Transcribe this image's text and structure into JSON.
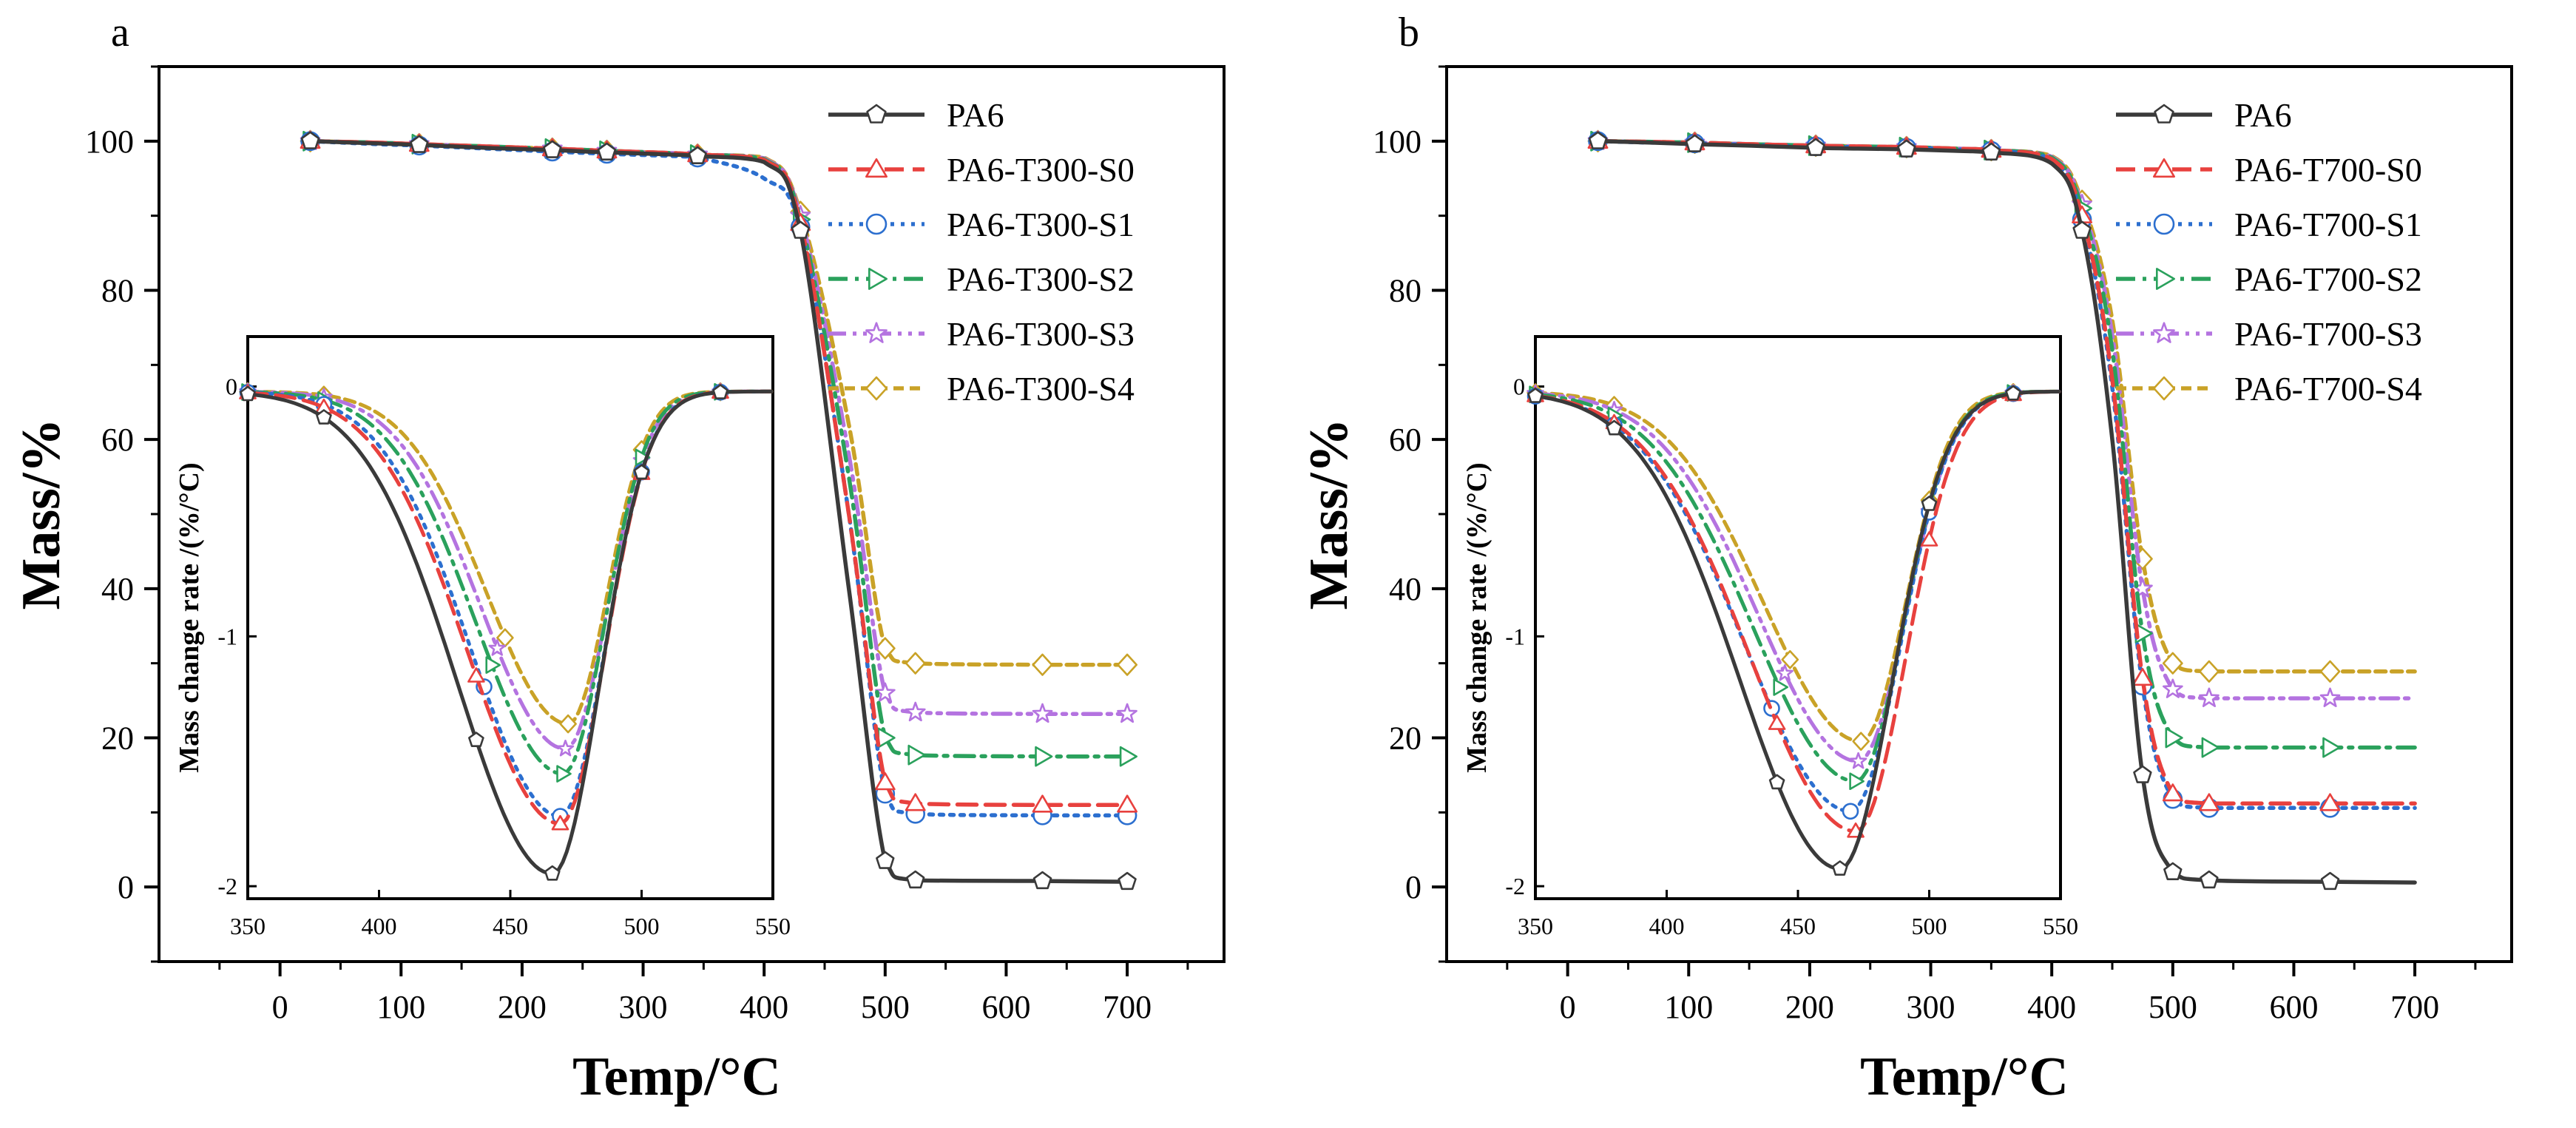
{
  "chart_data": [
    {
      "type": "line",
      "panel_label": "a",
      "xlabel": "Temp/°C",
      "ylabel": "Mass/%",
      "xlim": [
        -100,
        780
      ],
      "ylim": [
        -10,
        110
      ],
      "xticks": [
        0,
        100,
        200,
        300,
        400,
        500,
        600,
        700
      ],
      "yticks": [
        0,
        20,
        40,
        60,
        80,
        100
      ],
      "legend_position": "top-right",
      "colors": [
        "#3a3a3a",
        "#e8413e",
        "#2c6fcf",
        "#2aa15c",
        "#b473e0",
        "#c9a227"
      ],
      "series": [
        {
          "name": "PA6",
          "marker": "pentagon",
          "dash": "solid",
          "onset": 440,
          "plateau": 0.8,
          "x": [
            25,
            80,
            115,
            170,
            225,
            255,
            270,
            325,
            345,
            400,
            430,
            470,
            500,
            525,
            630,
            700
          ],
          "y": [
            100,
            99.7,
            99.5,
            99.1,
            98.8,
            98.6,
            98.5,
            98.2,
            98.0,
            97.2,
            88.0,
            40.0,
            3.5,
            0.9,
            0.8,
            0.7
          ]
        },
        {
          "name": "PA6-T300-S0",
          "marker": "triangle-up",
          "dash": "dashed",
          "onset": 450,
          "plateau": 11.0,
          "x": [
            25,
            80,
            115,
            170,
            225,
            255,
            270,
            325,
            345,
            400,
            430,
            470,
            500,
            525,
            630,
            700
          ],
          "y": [
            100,
            99.8,
            99.6,
            99.3,
            99.0,
            98.8,
            98.7,
            98.4,
            98.2,
            97.5,
            89.0,
            50.0,
            14.0,
            11.2,
            11.0,
            11.0
          ]
        },
        {
          "name": "PA6-T300-S1",
          "marker": "circle",
          "dash": "dotted",
          "onset": 452,
          "plateau": 9.6,
          "x": [
            25,
            80,
            115,
            170,
            225,
            255,
            270,
            325,
            345,
            400,
            430,
            470,
            500,
            525,
            630,
            700
          ],
          "y": [
            100,
            99.6,
            99.4,
            99.0,
            98.6,
            98.4,
            98.3,
            98.0,
            97.8,
            95.0,
            88.5,
            50.0,
            12.5,
            9.8,
            9.6,
            9.6
          ]
        },
        {
          "name": "PA6-T300-S2",
          "marker": "triangle-right",
          "dash": "dash-dot",
          "onset": 455,
          "plateau": 17.5,
          "x": [
            25,
            80,
            115,
            170,
            225,
            255,
            270,
            325,
            345,
            400,
            430,
            470,
            500,
            525,
            630,
            700
          ],
          "y": [
            100,
            99.8,
            99.6,
            99.3,
            99.0,
            98.8,
            98.7,
            98.4,
            98.2,
            97.6,
            89.5,
            55.0,
            20.0,
            17.7,
            17.5,
            17.5
          ]
        },
        {
          "name": "PA6-T300-S3",
          "marker": "star",
          "dash": "dash-dot-dot",
          "onset": 458,
          "plateau": 23.2,
          "x": [
            25,
            80,
            115,
            170,
            225,
            255,
            270,
            325,
            345,
            400,
            430,
            470,
            500,
            525,
            630,
            700
          ],
          "y": [
            100,
            99.8,
            99.6,
            99.3,
            99.0,
            98.8,
            98.7,
            98.4,
            98.2,
            97.7,
            90.0,
            58.0,
            26.0,
            23.4,
            23.2,
            23.2
          ]
        },
        {
          "name": "PA6-T300-S4",
          "marker": "diamond",
          "dash": "short-dash",
          "onset": 460,
          "plateau": 29.8,
          "x": [
            25,
            80,
            115,
            170,
            225,
            255,
            270,
            325,
            345,
            400,
            430,
            470,
            500,
            525,
            630,
            700
          ],
          "y": [
            100,
            99.8,
            99.6,
            99.3,
            99.0,
            98.8,
            98.7,
            98.4,
            98.2,
            97.8,
            90.5,
            62.0,
            32.0,
            30.0,
            29.8,
            29.8
          ]
        }
      ],
      "inset": {
        "xlabel": "",
        "ylabel": "Mass change rate /(%/°C)",
        "xlim": [
          350,
          550
        ],
        "ylim": [
          -2.05,
          0.2
        ],
        "xticks": [
          350,
          400,
          450,
          500,
          550
        ],
        "ytick_labels": [
          "0",
          "-1",
          "-2"
        ],
        "ytick_values": [
          0,
          -1,
          -2
        ],
        "series": [
          {
            "name": "PA6",
            "peak_x": 466,
            "peak_y": -1.95,
            "left_width": 36,
            "right_width": 18,
            "marker_x": [
              350,
              379,
              437,
              466,
              500,
              530
            ]
          },
          {
            "name": "PA6-T300-S0",
            "peak_x": 469,
            "peak_y": -1.75,
            "left_width": 35,
            "right_width": 17,
            "marker_x": [
              350,
              379,
              437,
              469,
              500,
              530
            ]
          },
          {
            "name": "PA6-T300-S1",
            "peak_x": 469,
            "peak_y": -1.72,
            "left_width": 34,
            "right_width": 17,
            "marker_x": [
              350,
              379,
              440,
              469,
              500,
              530
            ]
          },
          {
            "name": "PA6-T300-S2",
            "peak_x": 470,
            "peak_y": -1.55,
            "left_width": 33,
            "right_width": 16,
            "marker_x": [
              350,
              379,
              443,
              470,
              500,
              530
            ]
          },
          {
            "name": "PA6-T300-S3",
            "peak_x": 471,
            "peak_y": -1.45,
            "left_width": 32,
            "right_width": 16,
            "marker_x": [
              350,
              379,
              445,
              471,
              500,
              530
            ]
          },
          {
            "name": "PA6-T300-S4",
            "peak_x": 472,
            "peak_y": -1.35,
            "left_width": 31,
            "right_width": 15,
            "marker_x": [
              350,
              379,
              448,
              472,
              500,
              530
            ]
          }
        ]
      }
    },
    {
      "type": "line",
      "panel_label": "b",
      "xlabel": "Temp/°C",
      "ylabel": "Mass/%",
      "xlim": [
        -100,
        780
      ],
      "ylim": [
        -10,
        110
      ],
      "xticks": [
        0,
        100,
        200,
        300,
        400,
        500,
        600,
        700
      ],
      "yticks": [
        0,
        20,
        40,
        60,
        80,
        100
      ],
      "legend_position": "top-right",
      "colors": [
        "#3a3a3a",
        "#e8413e",
        "#2c6fcf",
        "#2aa15c",
        "#b473e0",
        "#c9a227"
      ],
      "series": [
        {
          "name": "PA6",
          "marker": "pentagon",
          "dash": "solid",
          "x": [
            25,
            70,
            105,
            150,
            205,
            240,
            280,
            320,
            350,
            400,
            425,
            450,
            475,
            500,
            530,
            630,
            700
          ],
          "y": [
            100,
            99.8,
            99.6,
            99.4,
            99.1,
            99.0,
            98.9,
            98.7,
            98.5,
            97.0,
            88.0,
            60.0,
            15.0,
            2.0,
            0.9,
            0.7,
            0.6
          ]
        },
        {
          "name": "PA6-T700-S0",
          "marker": "triangle-up",
          "dash": "dashed",
          "x": [
            25,
            70,
            105,
            150,
            205,
            240,
            280,
            320,
            350,
            400,
            425,
            450,
            475,
            500,
            530,
            630,
            700
          ],
          "y": [
            100,
            99.9,
            99.8,
            99.6,
            99.4,
            99.3,
            99.2,
            99.0,
            98.8,
            97.6,
            90.0,
            68.0,
            28.0,
            12.5,
            11.2,
            11.2,
            11.2
          ]
        },
        {
          "name": "PA6-T700-S1",
          "marker": "circle",
          "dash": "dotted",
          "x": [
            25,
            70,
            105,
            150,
            205,
            240,
            280,
            320,
            350,
            400,
            425,
            450,
            475,
            500,
            530,
            630,
            700
          ],
          "y": [
            100,
            99.8,
            99.7,
            99.5,
            99.3,
            99.2,
            99.1,
            98.9,
            98.7,
            97.5,
            89.5,
            67.0,
            27.0,
            11.8,
            10.6,
            10.6,
            10.6
          ]
        },
        {
          "name": "PA6-T700-S2",
          "marker": "triangle-right",
          "dash": "dash-dot",
          "x": [
            25,
            70,
            105,
            150,
            205,
            240,
            280,
            320,
            350,
            400,
            425,
            450,
            475,
            500,
            530,
            630,
            700
          ],
          "y": [
            100,
            99.9,
            99.8,
            99.6,
            99.4,
            99.3,
            99.2,
            99.0,
            98.8,
            97.8,
            91.0,
            72.0,
            34.0,
            20.0,
            18.7,
            18.7,
            18.7
          ]
        },
        {
          "name": "PA6-T700-S3",
          "marker": "star",
          "dash": "dash-dot-dot",
          "x": [
            25,
            70,
            105,
            150,
            205,
            240,
            280,
            320,
            350,
            400,
            425,
            450,
            475,
            500,
            530,
            630,
            700
          ],
          "y": [
            100,
            99.9,
            99.8,
            99.6,
            99.4,
            99.3,
            99.2,
            99.0,
            98.8,
            97.9,
            91.5,
            74.0,
            40.0,
            26.5,
            25.3,
            25.3,
            25.3
          ]
        },
        {
          "name": "PA6-T700-S4",
          "marker": "diamond",
          "dash": "short-dash",
          "x": [
            25,
            70,
            105,
            150,
            205,
            240,
            280,
            320,
            350,
            400,
            425,
            450,
            475,
            500,
            530,
            630,
            700
          ],
          "y": [
            100,
            99.9,
            99.8,
            99.6,
            99.4,
            99.3,
            99.2,
            99.0,
            98.8,
            98.0,
            92.0,
            76.0,
            44.0,
            30.0,
            28.9,
            28.9,
            28.9
          ]
        }
      ],
      "inset": {
        "xlabel": "",
        "ylabel": "Mass change rate /(%/°C)",
        "xlim": [
          350,
          550
        ],
        "ylim": [
          -2.05,
          0.2
        ],
        "xticks": [
          350,
          400,
          450,
          500,
          550
        ],
        "ytick_labels": [
          "0",
          "-1",
          "-2"
        ],
        "ytick_values": [
          0,
          -1,
          -2
        ],
        "series": [
          {
            "name": "PA6",
            "peak_x": 466,
            "peak_y": -1.93,
            "left_width": 38,
            "right_width": 20,
            "marker_x": [
              350,
              380,
              442,
              466,
              500,
              532
            ]
          },
          {
            "name": "PA6-T700-S0",
            "peak_x": 472,
            "peak_y": -1.78,
            "left_width": 40,
            "right_width": 19,
            "marker_x": [
              350,
              380,
              442,
              472,
              500,
              532
            ]
          },
          {
            "name": "PA6-T700-S1",
            "peak_x": 470,
            "peak_y": -1.7,
            "left_width": 40,
            "right_width": 19,
            "marker_x": [
              350,
              380,
              440,
              470,
              500,
              532
            ]
          },
          {
            "name": "PA6-T700-S2",
            "peak_x": 472,
            "peak_y": -1.58,
            "left_width": 39,
            "right_width": 18,
            "marker_x": [
              350,
              380,
              443,
              472,
              500,
              532
            ]
          },
          {
            "name": "PA6-T700-S3",
            "peak_x": 473,
            "peak_y": -1.5,
            "left_width": 38,
            "right_width": 18,
            "marker_x": [
              350,
              380,
              445,
              473,
              500,
              532
            ]
          },
          {
            "name": "PA6-T700-S4",
            "peak_x": 474,
            "peak_y": -1.42,
            "left_width": 37,
            "right_width": 17,
            "marker_x": [
              350,
              380,
              447,
              474,
              500,
              532
            ]
          }
        ]
      }
    }
  ]
}
